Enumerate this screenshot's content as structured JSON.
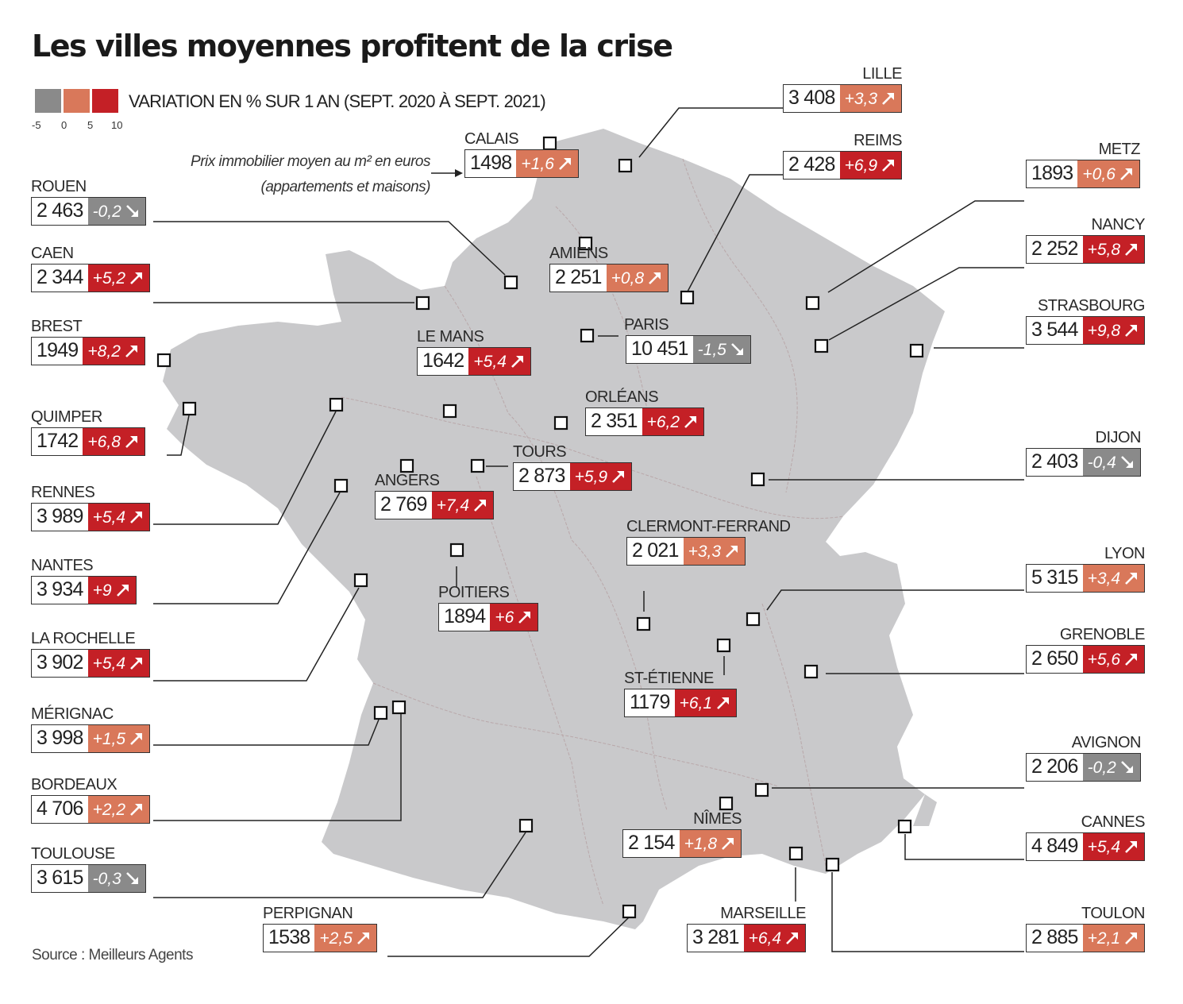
{
  "title": "Les villes moyennes profitent de la crise",
  "legend": {
    "label": "VARIATION EN % SUR 1 AN (SEPT. 2020 À SEPT. 2021)",
    "ticks": [
      "-5",
      "0",
      "5",
      "10"
    ],
    "colors": [
      "#8a8a8a",
      "#d9785a",
      "#c42026"
    ]
  },
  "intro": {
    "line1": "Prix immobilier moyen au m² en euros",
    "line2": "(appartements et maisons)"
  },
  "source": "Source : Meilleurs Agents",
  "colors": {
    "land": "#c9c9cb",
    "neg": "#8a8a8a",
    "low": "#d9785a",
    "high": "#c42026",
    "border_lines": "#b9a8aa"
  },
  "cities": [
    {
      "name": "LILLE",
      "price": "3 408",
      "var": "+3,3",
      "trend": "up",
      "color": "low"
    },
    {
      "name": "CALAIS",
      "price": "1498",
      "var": "+1,6",
      "trend": "up",
      "color": "low"
    },
    {
      "name": "REIMS",
      "price": "2 428",
      "var": "+6,9",
      "trend": "up",
      "color": "high"
    },
    {
      "name": "METZ",
      "price": "1893",
      "var": "+0,6",
      "trend": "up",
      "color": "low"
    },
    {
      "name": "ROUEN",
      "price": "2 463",
      "var": "-0,2",
      "trend": "down",
      "color": "neg"
    },
    {
      "name": "NANCY",
      "price": "2 252",
      "var": "+5,8",
      "trend": "up",
      "color": "high"
    },
    {
      "name": "CAEN",
      "price": "2 344",
      "var": "+5,2",
      "trend": "up",
      "color": "high"
    },
    {
      "name": "AMIENS",
      "price": "2 251",
      "var": "+0,8",
      "trend": "up",
      "color": "low"
    },
    {
      "name": "STRASBOURG",
      "price": "3 544",
      "var": "+9,8",
      "trend": "up",
      "color": "high"
    },
    {
      "name": "BREST",
      "price": "1949",
      "var": "+8,2",
      "trend": "up",
      "color": "high"
    },
    {
      "name": "PARIS",
      "price": "10 451",
      "var": "-1,5",
      "trend": "down",
      "color": "neg"
    },
    {
      "name": "LE MANS",
      "price": "1642",
      "var": "+5,4",
      "trend": "up",
      "color": "high"
    },
    {
      "name": "ORLÉANS",
      "price": "2 351",
      "var": "+6,2",
      "trend": "up",
      "color": "high"
    },
    {
      "name": "QUIMPER",
      "price": "1742",
      "var": "+6,8",
      "trend": "up",
      "color": "high"
    },
    {
      "name": "DIJON",
      "price": "2 403",
      "var": "-0,4",
      "trend": "down",
      "color": "neg"
    },
    {
      "name": "TOURS",
      "price": "2 873",
      "var": "+5,9",
      "trend": "up",
      "color": "high"
    },
    {
      "name": "RENNES",
      "price": "3 989",
      "var": "+5,4",
      "trend": "up",
      "color": "high"
    },
    {
      "name": "ANGERS",
      "price": "2 769",
      "var": "+7,4",
      "trend": "up",
      "color": "high"
    },
    {
      "name": "CLERMONT-FERRAND",
      "price": "2 021",
      "var": "+3,3",
      "trend": "up",
      "color": "low"
    },
    {
      "name": "LYON",
      "price": "5 315",
      "var": "+3,4",
      "trend": "up",
      "color": "low"
    },
    {
      "name": "NANTES",
      "price": "3 934",
      "var": "+9",
      "trend": "up",
      "color": "high"
    },
    {
      "name": "POITIERS",
      "price": "1894",
      "var": "+6",
      "trend": "up",
      "color": "high"
    },
    {
      "name": "GRENOBLE",
      "price": "2 650",
      "var": "+5,6",
      "trend": "up",
      "color": "high"
    },
    {
      "name": "LA ROCHELLE",
      "price": "3 902",
      "var": "+5,4",
      "trend": "up",
      "color": "high"
    },
    {
      "name": "ST-ÉTIENNE",
      "price": "1179",
      "var": "+6,1",
      "trend": "up",
      "color": "high"
    },
    {
      "name": "MÉRIGNAC",
      "price": "3 998",
      "var": "+1,5",
      "trend": "up",
      "color": "low"
    },
    {
      "name": "AVIGNON",
      "price": "2 206",
      "var": "-0,2",
      "trend": "down",
      "color": "neg"
    },
    {
      "name": "BORDEAUX",
      "price": "4 706",
      "var": "+2,2",
      "trend": "up",
      "color": "low"
    },
    {
      "name": "NÎMES",
      "price": "2 154",
      "var": "+1,8",
      "trend": "up",
      "color": "low"
    },
    {
      "name": "CANNES",
      "price": "4 849",
      "var": "+5,4",
      "trend": "up",
      "color": "high"
    },
    {
      "name": "TOULOUSE",
      "price": "3 615",
      "var": "-0,3",
      "trend": "down",
      "color": "neg"
    },
    {
      "name": "PERPIGNAN",
      "price": "1538",
      "var": "+2,5",
      "trend": "up",
      "color": "low"
    },
    {
      "name": "MARSEILLE",
      "price": "3 281",
      "var": "+6,4",
      "trend": "up",
      "color": "high"
    },
    {
      "name": "TOULON",
      "price": "2 885",
      "var": "+2,1",
      "trend": "up",
      "color": "low"
    }
  ]
}
